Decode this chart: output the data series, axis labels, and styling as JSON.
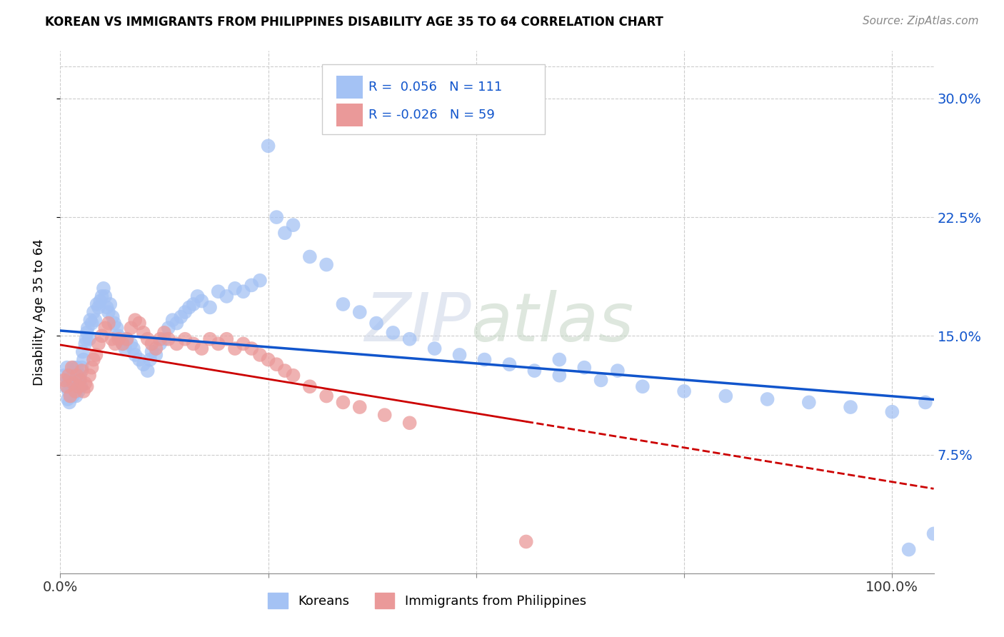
{
  "title": "KOREAN VS IMMIGRANTS FROM PHILIPPINES DISABILITY AGE 35 TO 64 CORRELATION CHART",
  "source": "Source: ZipAtlas.com",
  "ylabel": "Disability Age 35 to 64",
  "yticks": [
    "7.5%",
    "15.0%",
    "22.5%",
    "30.0%"
  ],
  "ytick_vals": [
    0.075,
    0.15,
    0.225,
    0.3
  ],
  "ymin": 0.0,
  "ymax": 0.33,
  "xmin": 0.0,
  "xmax": 1.05,
  "korean_R": 0.056,
  "korean_N": 111,
  "phil_R": -0.026,
  "phil_N": 59,
  "korean_color": "#a4c2f4",
  "phil_color": "#ea9999",
  "trend_korean_color": "#1155cc",
  "trend_phil_color": "#cc0000",
  "background_color": "#ffffff",
  "korean_x": [
    0.005,
    0.007,
    0.008,
    0.009,
    0.01,
    0.01,
    0.011,
    0.012,
    0.013,
    0.014,
    0.015,
    0.015,
    0.016,
    0.016,
    0.017,
    0.018,
    0.019,
    0.02,
    0.02,
    0.021,
    0.022,
    0.023,
    0.024,
    0.025,
    0.026,
    0.027,
    0.028,
    0.03,
    0.031,
    0.032,
    0.033,
    0.035,
    0.036,
    0.038,
    0.04,
    0.042,
    0.044,
    0.046,
    0.048,
    0.05,
    0.052,
    0.054,
    0.056,
    0.058,
    0.06,
    0.063,
    0.065,
    0.068,
    0.07,
    0.073,
    0.075,
    0.078,
    0.08,
    0.085,
    0.088,
    0.09,
    0.095,
    0.1,
    0.105,
    0.108,
    0.11,
    0.115,
    0.12,
    0.125,
    0.13,
    0.135,
    0.14,
    0.145,
    0.15,
    0.155,
    0.16,
    0.165,
    0.17,
    0.18,
    0.19,
    0.2,
    0.21,
    0.22,
    0.23,
    0.24,
    0.25,
    0.26,
    0.27,
    0.28,
    0.3,
    0.32,
    0.34,
    0.36,
    0.38,
    0.4,
    0.42,
    0.45,
    0.48,
    0.51,
    0.54,
    0.57,
    0.6,
    0.65,
    0.7,
    0.75,
    0.8,
    0.85,
    0.9,
    0.95,
    1.0,
    1.02,
    1.04,
    1.05,
    0.6,
    0.63,
    0.67
  ],
  "korean_y": [
    0.125,
    0.118,
    0.13,
    0.11,
    0.115,
    0.122,
    0.108,
    0.12,
    0.113,
    0.118,
    0.125,
    0.112,
    0.13,
    0.115,
    0.12,
    0.118,
    0.112,
    0.125,
    0.13,
    0.118,
    0.115,
    0.122,
    0.125,
    0.118,
    0.13,
    0.14,
    0.135,
    0.145,
    0.148,
    0.152,
    0.155,
    0.148,
    0.16,
    0.158,
    0.165,
    0.16,
    0.17,
    0.168,
    0.172,
    0.175,
    0.18,
    0.175,
    0.168,
    0.165,
    0.17,
    0.162,
    0.158,
    0.155,
    0.15,
    0.148,
    0.145,
    0.142,
    0.148,
    0.145,
    0.142,
    0.138,
    0.135,
    0.132,
    0.128,
    0.135,
    0.14,
    0.138,
    0.145,
    0.148,
    0.155,
    0.16,
    0.158,
    0.162,
    0.165,
    0.168,
    0.17,
    0.175,
    0.172,
    0.168,
    0.178,
    0.175,
    0.18,
    0.178,
    0.182,
    0.185,
    0.27,
    0.225,
    0.215,
    0.22,
    0.2,
    0.195,
    0.17,
    0.165,
    0.158,
    0.152,
    0.148,
    0.142,
    0.138,
    0.135,
    0.132,
    0.128,
    0.125,
    0.122,
    0.118,
    0.115,
    0.112,
    0.11,
    0.108,
    0.105,
    0.102,
    0.015,
    0.108,
    0.025,
    0.135,
    0.13,
    0.128
  ],
  "phil_x": [
    0.005,
    0.008,
    0.01,
    0.012,
    0.014,
    0.016,
    0.018,
    0.02,
    0.022,
    0.024,
    0.026,
    0.028,
    0.03,
    0.032,
    0.035,
    0.038,
    0.04,
    0.043,
    0.046,
    0.05,
    0.054,
    0.058,
    0.062,
    0.066,
    0.07,
    0.075,
    0.08,
    0.085,
    0.09,
    0.095,
    0.1,
    0.105,
    0.11,
    0.115,
    0.12,
    0.125,
    0.13,
    0.14,
    0.15,
    0.16,
    0.17,
    0.18,
    0.19,
    0.2,
    0.21,
    0.22,
    0.23,
    0.24,
    0.25,
    0.26,
    0.27,
    0.28,
    0.3,
    0.32,
    0.34,
    0.36,
    0.39,
    0.42,
    0.56
  ],
  "phil_y": [
    0.122,
    0.118,
    0.125,
    0.112,
    0.13,
    0.12,
    0.115,
    0.125,
    0.118,
    0.122,
    0.128,
    0.115,
    0.12,
    0.118,
    0.125,
    0.13,
    0.135,
    0.138,
    0.145,
    0.15,
    0.155,
    0.158,
    0.148,
    0.145,
    0.148,
    0.145,
    0.148,
    0.155,
    0.16,
    0.158,
    0.152,
    0.148,
    0.145,
    0.142,
    0.148,
    0.152,
    0.148,
    0.145,
    0.148,
    0.145,
    0.142,
    0.148,
    0.145,
    0.148,
    0.142,
    0.145,
    0.142,
    0.138,
    0.135,
    0.132,
    0.128,
    0.125,
    0.118,
    0.112,
    0.108,
    0.105,
    0.1,
    0.095,
    0.02
  ]
}
